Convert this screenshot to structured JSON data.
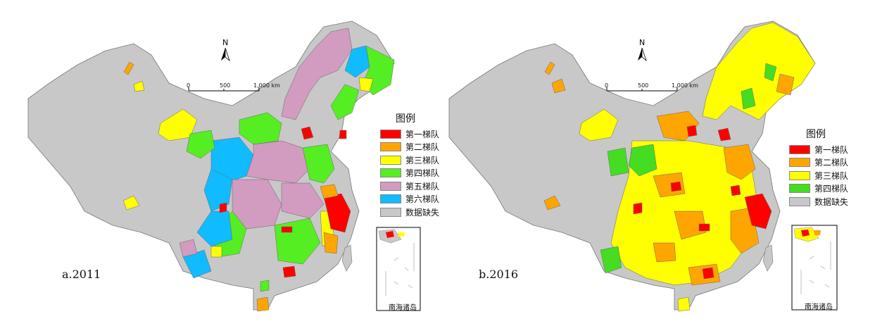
{
  "panels": [
    {
      "label": "a.2011",
      "legend_title": "图例",
      "legend": [
        {
          "label": "第一梯队",
          "color": "#ff0000"
        },
        {
          "label": "第二梯队",
          "color": "#ffa500"
        },
        {
          "label": "第三梯队",
          "color": "#ffff00"
        },
        {
          "label": "第四梯队",
          "color": "#55ee22"
        },
        {
          "label": "第五梯队",
          "color": "#d29bc0"
        },
        {
          "label": "第六梯队",
          "color": "#11bbff"
        },
        {
          "label": "数据缺失",
          "color": "#c8c8c8"
        }
      ]
    },
    {
      "label": "b.2016",
      "legend_title": "图例",
      "legend": [
        {
          "label": "第一梯队",
          "color": "#ff0000"
        },
        {
          "label": "第二梯队",
          "color": "#ffa500"
        },
        {
          "label": "第三梯队",
          "color": "#ffff00"
        },
        {
          "label": "第四梯队",
          "color": "#44dd22"
        },
        {
          "label": "数据缺失",
          "color": "#c8c8c8"
        }
      ]
    }
  ],
  "north_label": "N",
  "scale": {
    "ticks": [
      "0",
      "500",
      "1,000 km"
    ]
  },
  "inset_label": "南海诸岛"
}
